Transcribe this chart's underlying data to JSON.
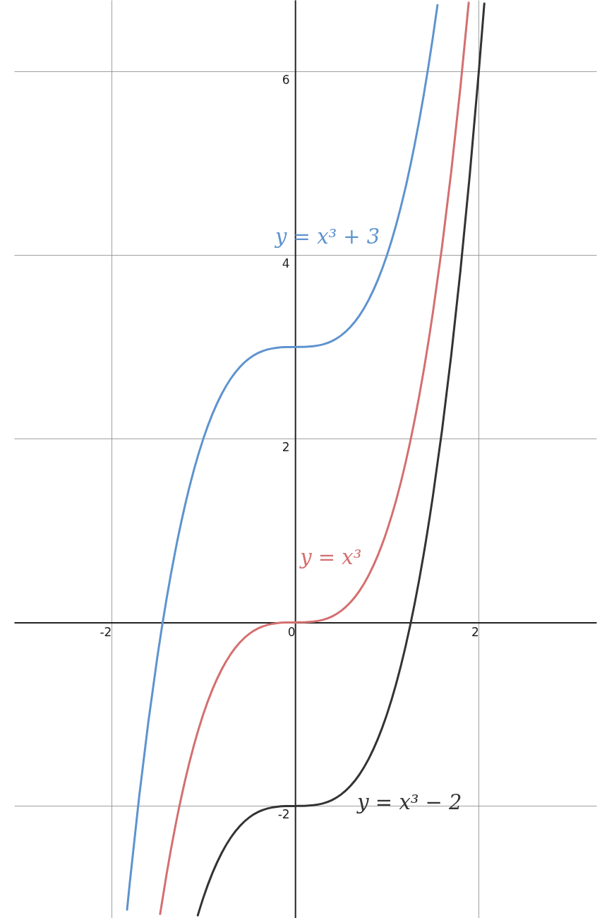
{
  "chart_data": {
    "type": "line",
    "xlim": [
      -3.06,
      3.28
    ],
    "ylim": [
      -3.22,
      6.78
    ],
    "xticks": [
      -2,
      0,
      2
    ],
    "yticks": [
      -2,
      2,
      4,
      6
    ],
    "grid": true,
    "marker": "none",
    "line_style": "solid",
    "series": [
      {
        "color": "#5e93cf",
        "x": [
          -1.83,
          -1.8,
          -1.7,
          -1.6,
          -1.5,
          -1.4,
          -1.3,
          -1.2,
          -1.1,
          -1.0,
          -0.9,
          -0.8,
          -0.7,
          -0.6,
          -0.5,
          -0.4,
          -0.3,
          -0.2,
          -0.1,
          0,
          0.1,
          0.2,
          0.3,
          0.4,
          0.5,
          0.6,
          0.7,
          0.8,
          0.9,
          1.0,
          1.1,
          1.2,
          1.3,
          1.4,
          1.5,
          1.55
        ],
        "values": [
          -3.129,
          -2.832,
          -1.913,
          -1.096,
          -0.375,
          0.256,
          0.803,
          1.272,
          1.669,
          2,
          2.271,
          2.488,
          2.657,
          2.784,
          2.875,
          2.936,
          2.973,
          2.992,
          2.999,
          3,
          3.001,
          3.008,
          3.027,
          3.064,
          3.125,
          3.216,
          3.343,
          3.512,
          3.729,
          4,
          4.331,
          4.728,
          5.197,
          5.744,
          6.375,
          6.724
        ]
      },
      {
        "color": "#d46f6f",
        "x": [
          -1.47,
          -1.4,
          -1.3,
          -1.2,
          -1.1,
          -1.0,
          -0.9,
          -0.8,
          -0.7,
          -0.6,
          -0.5,
          -0.4,
          -0.3,
          -0.2,
          -0.1,
          0,
          0.1,
          0.2,
          0.3,
          0.4,
          0.5,
          0.6,
          0.7,
          0.8,
          0.9,
          1.0,
          1.1,
          1.2,
          1.3,
          1.4,
          1.5,
          1.6,
          1.7,
          1.8,
          1.89
        ],
        "values": [
          -3.176,
          -2.744,
          -2.197,
          -1.728,
          -1.331,
          -1,
          -0.729,
          -0.512,
          -0.343,
          -0.216,
          -0.125,
          -0.064,
          -0.027,
          -0.008,
          -0.001,
          0,
          0.001,
          0.008,
          0.027,
          0.064,
          0.125,
          0.216,
          0.343,
          0.512,
          0.729,
          1,
          1.331,
          1.728,
          2.197,
          2.744,
          3.375,
          4.096,
          4.913,
          5.832,
          6.751
        ]
      },
      {
        "color": "#333333",
        "x": [
          -1.06,
          -1.0,
          -0.9,
          -0.8,
          -0.7,
          -0.6,
          -0.5,
          -0.4,
          -0.3,
          -0.2,
          -0.1,
          0,
          0.1,
          0.2,
          0.3,
          0.4,
          0.5,
          0.6,
          0.7,
          0.8,
          0.9,
          1.0,
          1.1,
          1.2,
          1.3,
          1.4,
          1.5,
          1.6,
          1.7,
          1.8,
          1.9,
          2.0,
          2.06
        ],
        "values": [
          -3.191,
          -3,
          -2.729,
          -2.512,
          -2.343,
          -2.216,
          -2.125,
          -2.064,
          -2.027,
          -2.008,
          -2.001,
          -2,
          -1.999,
          -1.992,
          -1.973,
          -1.936,
          -1.875,
          -1.784,
          -1.657,
          -1.488,
          -1.271,
          -1,
          -0.669,
          -0.272,
          0.197,
          0.744,
          1.375,
          2.096,
          2.913,
          3.832,
          4.859,
          6,
          6.742
        ]
      }
    ],
    "annotations": [
      {
        "text": "y = x³ + 3",
        "x": 1.0,
        "y": 4
      },
      {
        "text": "y = x³",
        "x": 0.8,
        "y": 0.512
      },
      {
        "text": "y = x³ − 2",
        "x": 0.6,
        "y": -1.784
      }
    ]
  }
}
